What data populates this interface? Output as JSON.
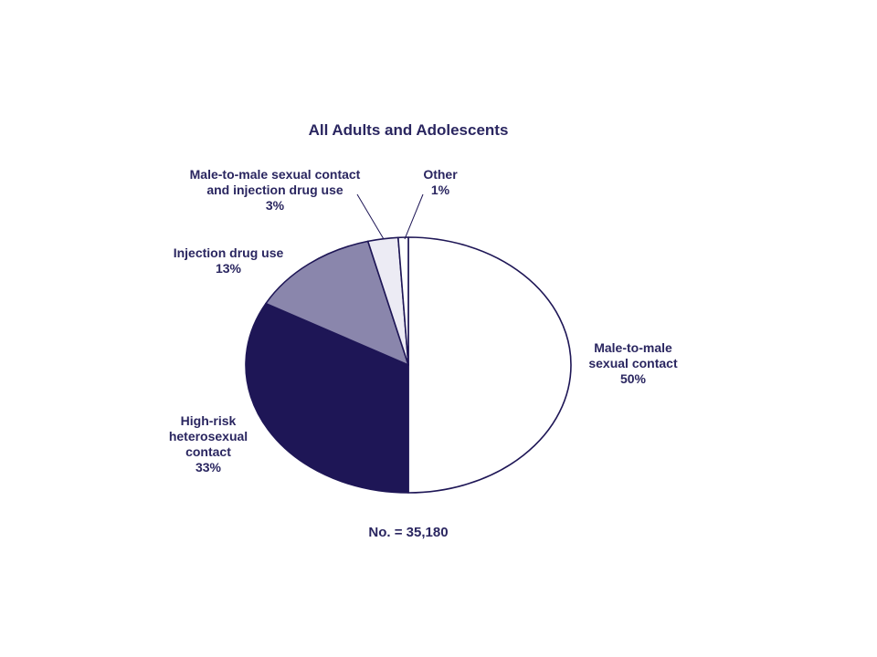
{
  "chart_data": {
    "type": "pie",
    "title": "All Adults and Adolescents",
    "note": "No. = 35,180",
    "slices": [
      {
        "label_lines": [
          "Male-to-male",
          "sexual contact"
        ],
        "percent_label": "50%",
        "value": 50,
        "color": "#ffffff"
      },
      {
        "label_lines": [
          "High-risk",
          "heterosexual",
          "contact"
        ],
        "percent_label": "33%",
        "value": 33,
        "color": "#1e1656"
      },
      {
        "label_lines": [
          "Injection drug use"
        ],
        "percent_label": "13%",
        "value": 13,
        "color": "#8a86ac"
      },
      {
        "label_lines": [
          "Male-to-male sexual contact",
          "and injection drug use"
        ],
        "percent_label": "3%",
        "value": 3,
        "color": "#ecebf4"
      },
      {
        "label_lines": [
          "Other"
        ],
        "percent_label": "1%",
        "value": 1,
        "color": "#ffffff"
      }
    ]
  }
}
